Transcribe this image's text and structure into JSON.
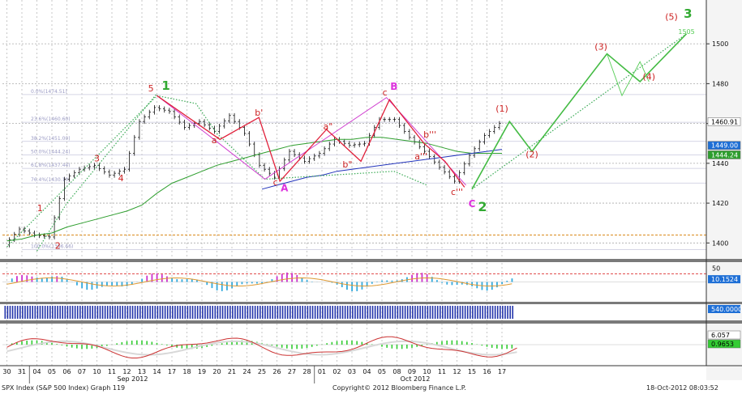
{
  "chart_data": [
    {
      "type": "line",
      "panel": "price",
      "title": "SPX Index (S&P 500 Index) Graph 119",
      "ylim": [
        1392,
        1522
      ],
      "y_ticks": [
        "1400",
        "1420",
        "1440",
        "1460",
        "1480",
        "1500"
      ],
      "x_categories": [
        "30",
        "31",
        "04",
        "05",
        "06",
        "07",
        "10",
        "11",
        "12",
        "13",
        "14",
        "17",
        "18",
        "19",
        "20",
        "21",
        "24",
        "25",
        "26",
        "27",
        "28",
        "01",
        "02",
        "03",
        "04",
        "05",
        "08",
        "09",
        "10",
        "11",
        "12",
        "15",
        "16",
        "17"
      ],
      "month_labels": [
        {
          "label": "Sep 2012",
          "at": "12"
        },
        {
          "label": "Oct 2012",
          "at": "09"
        }
      ],
      "series": [
        {
          "values": [
            1399,
            1407,
            1404,
            1403,
            1432,
            1437,
            1439,
            1434,
            1437,
            1461,
            1468,
            1466,
            1458,
            1461,
            1456,
            1464,
            1455,
            1439,
            1433,
            1446,
            1441,
            1445,
            1452,
            1449,
            1450,
            1462,
            1462,
            1453,
            1446,
            1438,
            1431,
            1444,
            1454,
            1460
          ],
          "color": "#111111"
        },
        {
          "values": [
            1401,
            1402,
            1404,
            1405,
            1408,
            1410,
            1412,
            1414,
            1416,
            1419,
            1425,
            1430,
            1433,
            1436,
            1439,
            1441,
            1443,
            1445,
            1447,
            1449,
            1450,
            1451,
            1452,
            1452,
            1453,
            1453,
            1452,
            1451,
            1450,
            1448,
            1446,
            1445,
            1445,
            1445
          ],
          "color": "#2e9e2e"
        },
        {
          "values": [
            null,
            null,
            null,
            null,
            null,
            null,
            null,
            null,
            null,
            null,
            null,
            null,
            null,
            null,
            null,
            null,
            null,
            1427,
            1429,
            1431,
            1433,
            1434,
            1436,
            1437,
            1438,
            1439,
            1440,
            1441,
            1442,
            1443,
            1444,
            1445,
            1446,
            1447
          ],
          "color": "#2233bb"
        }
      ],
      "last_values": [
        {
          "label": "1460.91",
          "value": 1460.91,
          "color": "#ffffff"
        },
        {
          "label": "1449.00",
          "value": 1449.0,
          "color": "#1e6fd6"
        },
        {
          "label": "1444.24",
          "value": 1444.24,
          "color": "#2e9e2e"
        }
      ],
      "fibonacci_labels": [
        "0.0%(1474.51)",
        "23.6%(1460.60)",
        "38.2%(1451.00)",
        "50.0%(1444.24)",
        "61.8%(1437.44)",
        "76.4%(1430.10)",
        "100.0%(1396.66)"
      ],
      "fibonacci_levels": [
        1474.51,
        1460.6,
        1451.0,
        1444.24,
        1437.44,
        1430.1,
        1396.66
      ],
      "support_level": 1404,
      "wave_labels": [
        "1",
        "2",
        "3",
        "4",
        "5",
        "1",
        "a'",
        "b'",
        "c",
        "A",
        "a\"",
        "b\"",
        "c",
        "B",
        "a'''",
        "b'''",
        "c'''",
        "C",
        "2",
        "(1)",
        "(2)",
        "(3)",
        "(4)",
        "(5)",
        "3",
        "1505"
      ]
    },
    {
      "type": "bar",
      "panel": "momentum oscillator",
      "ylim": [
        -70,
        70
      ],
      "y_ticks": [
        "50"
      ],
      "last_value_label": "10.1524",
      "last_value_color": "#1e6fd6"
    },
    {
      "type": "bar",
      "panel": "volume",
      "last_value_label": "540.0000",
      "last_value_color": "#1e6fd6"
    },
    {
      "type": "bar",
      "panel": "MACD",
      "last_value_labels": [
        "6.057",
        "0.9653"
      ],
      "last_value_colors": [
        "#ffffff",
        "#33cc33"
      ]
    }
  ],
  "footer": {
    "left": "SPX Index (S&P 500 Index) Graph 119",
    "center": "Copyright© 2012 Bloomberg Finance L.P.",
    "right": "18-Oct-2012 08:03:52"
  }
}
